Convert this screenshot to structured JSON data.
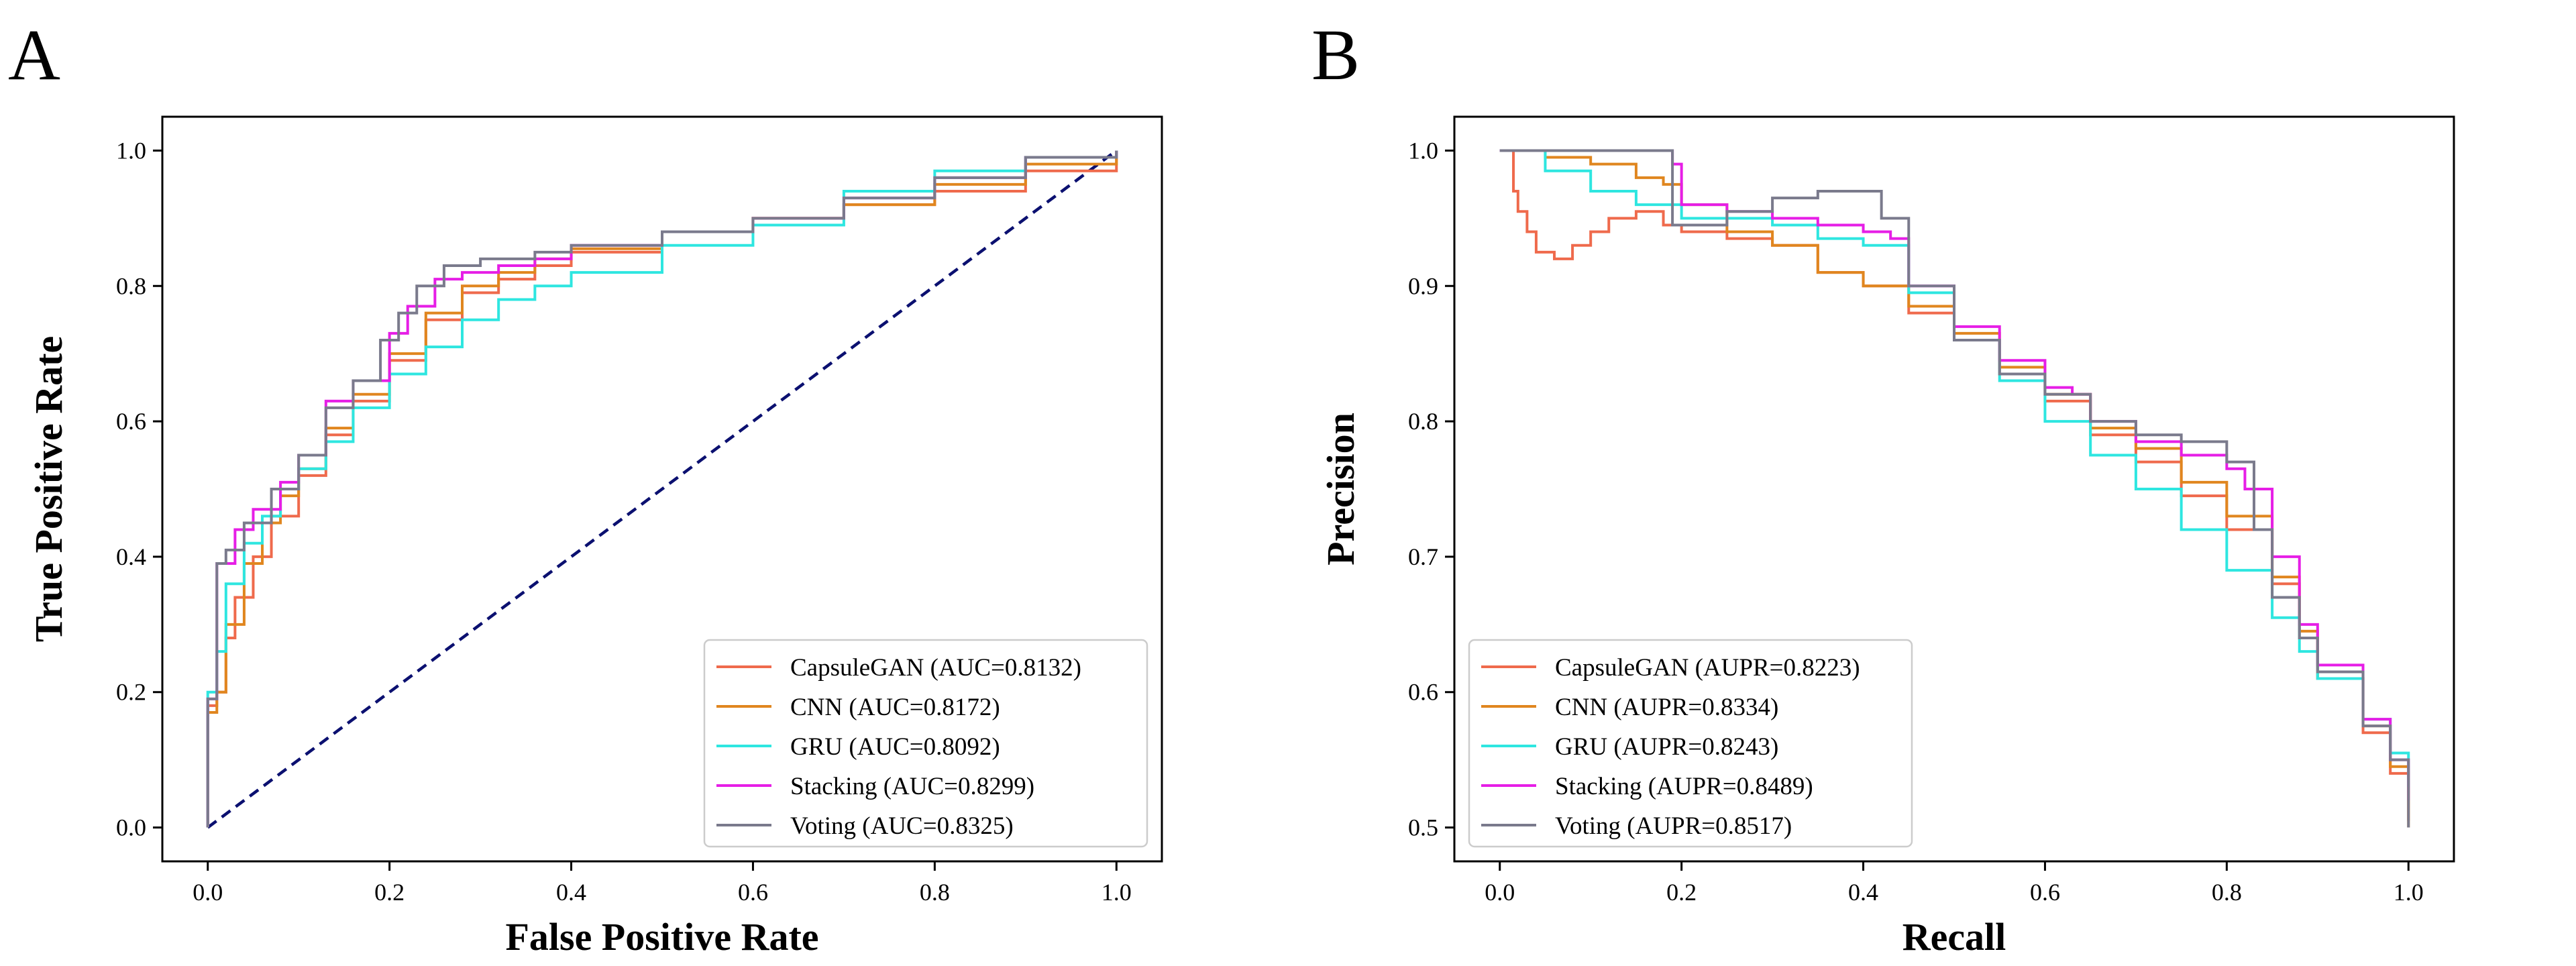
{
  "colors": {
    "CapsuleGAN": "#ef6a4c",
    "CNN": "#e0861f",
    "GRU": "#2ee6e0",
    "Stacking": "#e61ee6",
    "Voting": "#7a7a8c",
    "diagonal": "#0b1070"
  },
  "chart_data": [
    {
      "type": "line",
      "panel": "A",
      "xlabel": "False Positive Rate",
      "ylabel": "True Positive Rate",
      "xlim": [
        -0.05,
        1.05
      ],
      "ylim": [
        -0.05,
        1.05
      ],
      "xticks": [
        "0.0",
        "0.2",
        "0.4",
        "0.6",
        "0.8",
        "1.0"
      ],
      "yticks": [
        "0.0",
        "0.2",
        "0.4",
        "0.6",
        "0.8",
        "1.0"
      ],
      "grid": false,
      "legend_position": "bottom-right",
      "reference_line": {
        "x": [
          0,
          1
        ],
        "y": [
          0,
          1
        ],
        "style": "dashed"
      },
      "series": [
        {
          "name": "CapsuleGAN (AUC=0.8132)",
          "key": "CapsuleGAN",
          "x": [
            0,
            0,
            0.01,
            0.02,
            0.03,
            0.05,
            0.07,
            0.1,
            0.13,
            0.16,
            0.2,
            0.24,
            0.28,
            0.32,
            0.36,
            0.4,
            0.5,
            0.6,
            0.7,
            0.8,
            0.9,
            1.0
          ],
          "y": [
            0,
            0.18,
            0.2,
            0.28,
            0.34,
            0.4,
            0.46,
            0.52,
            0.58,
            0.63,
            0.69,
            0.75,
            0.79,
            0.81,
            0.83,
            0.85,
            0.88,
            0.9,
            0.92,
            0.94,
            0.97,
            1.0
          ]
        },
        {
          "name": "CNN (AUC=0.8172)",
          "key": "CNN",
          "x": [
            0,
            0,
            0.01,
            0.02,
            0.04,
            0.06,
            0.08,
            0.1,
            0.13,
            0.16,
            0.2,
            0.24,
            0.28,
            0.32,
            0.36,
            0.4,
            0.5,
            0.6,
            0.7,
            0.8,
            0.9,
            1.0
          ],
          "y": [
            0,
            0.17,
            0.2,
            0.3,
            0.39,
            0.45,
            0.49,
            0.53,
            0.59,
            0.64,
            0.7,
            0.76,
            0.8,
            0.82,
            0.84,
            0.855,
            0.88,
            0.9,
            0.92,
            0.95,
            0.98,
            1.0
          ]
        },
        {
          "name": "GRU (AUC=0.8092)",
          "key": "GRU",
          "x": [
            0,
            0,
            0.01,
            0.02,
            0.04,
            0.06,
            0.08,
            0.1,
            0.13,
            0.16,
            0.2,
            0.24,
            0.28,
            0.32,
            0.36,
            0.4,
            0.5,
            0.6,
            0.7,
            0.8,
            0.9,
            1.0
          ],
          "y": [
            0,
            0.2,
            0.26,
            0.36,
            0.42,
            0.46,
            0.5,
            0.53,
            0.57,
            0.62,
            0.67,
            0.71,
            0.75,
            0.78,
            0.8,
            0.82,
            0.86,
            0.89,
            0.94,
            0.97,
            0.99,
            1.0
          ]
        },
        {
          "name": "Stacking (AUC=0.8299)",
          "key": "Stacking",
          "x": [
            0,
            0,
            0.01,
            0.01,
            0.03,
            0.05,
            0.08,
            0.1,
            0.13,
            0.16,
            0.2,
            0.22,
            0.25,
            0.28,
            0.32,
            0.36,
            0.4,
            0.5,
            0.6,
            0.7,
            0.8,
            0.9,
            1.0
          ],
          "y": [
            0,
            0.19,
            0.2,
            0.39,
            0.44,
            0.47,
            0.51,
            0.55,
            0.63,
            0.66,
            0.73,
            0.77,
            0.81,
            0.82,
            0.83,
            0.84,
            0.86,
            0.88,
            0.9,
            0.93,
            0.96,
            0.99,
            1.0
          ]
        },
        {
          "name": "Voting (AUC=0.8325)",
          "key": "Voting",
          "x": [
            0,
            0,
            0.01,
            0.01,
            0.02,
            0.04,
            0.07,
            0.1,
            0.13,
            0.16,
            0.19,
            0.21,
            0.23,
            0.26,
            0.3,
            0.36,
            0.4,
            0.5,
            0.6,
            0.7,
            0.8,
            0.9,
            1.0
          ],
          "y": [
            0,
            0.19,
            0.2,
            0.39,
            0.41,
            0.45,
            0.5,
            0.55,
            0.62,
            0.66,
            0.72,
            0.76,
            0.8,
            0.83,
            0.84,
            0.85,
            0.86,
            0.88,
            0.9,
            0.93,
            0.96,
            0.99,
            1.0
          ]
        }
      ]
    },
    {
      "type": "line",
      "panel": "B",
      "xlabel": "Recall",
      "ylabel": "Precision",
      "xlim": [
        -0.05,
        1.05
      ],
      "ylim": [
        0.475,
        1.025
      ],
      "xticks": [
        "0.0",
        "0.2",
        "0.4",
        "0.6",
        "0.8",
        "1.0"
      ],
      "yticks": [
        "0.5",
        "0.6",
        "0.7",
        "0.8",
        "0.9",
        "1.0"
      ],
      "grid": false,
      "legend_position": "bottom-left",
      "series": [
        {
          "name": "CapsuleGAN (AUPR=0.8223)",
          "key": "CapsuleGAN",
          "x": [
            0,
            0.015,
            0.02,
            0.03,
            0.04,
            0.06,
            0.08,
            0.1,
            0.12,
            0.15,
            0.18,
            0.2,
            0.25,
            0.3,
            0.35,
            0.4,
            0.45,
            0.5,
            0.55,
            0.6,
            0.65,
            0.7,
            0.75,
            0.8,
            0.85,
            0.88,
            0.9,
            0.95,
            0.98,
            1.0,
            1.0
          ],
          "y": [
            1.0,
            0.97,
            0.955,
            0.94,
            0.925,
            0.92,
            0.93,
            0.94,
            0.95,
            0.955,
            0.945,
            0.94,
            0.935,
            0.93,
            0.91,
            0.9,
            0.88,
            0.86,
            0.835,
            0.815,
            0.79,
            0.77,
            0.745,
            0.72,
            0.68,
            0.64,
            0.61,
            0.57,
            0.54,
            0.52,
            0.505
          ]
        },
        {
          "name": "CNN (AUPR=0.8334)",
          "key": "CNN",
          "x": [
            0,
            0.05,
            0.1,
            0.15,
            0.18,
            0.2,
            0.25,
            0.3,
            0.35,
            0.4,
            0.45,
            0.5,
            0.55,
            0.6,
            0.65,
            0.7,
            0.75,
            0.8,
            0.85,
            0.88,
            0.9,
            0.95,
            0.98,
            1.0,
            1.0
          ],
          "y": [
            1.0,
            0.995,
            0.99,
            0.98,
            0.975,
            0.96,
            0.94,
            0.93,
            0.91,
            0.9,
            0.885,
            0.865,
            0.84,
            0.82,
            0.795,
            0.78,
            0.755,
            0.73,
            0.685,
            0.645,
            0.61,
            0.575,
            0.545,
            0.53,
            0.5
          ]
        },
        {
          "name": "GRU (AUPR=0.8243)",
          "key": "GRU",
          "x": [
            0,
            0.05,
            0.1,
            0.15,
            0.2,
            0.25,
            0.3,
            0.35,
            0.4,
            0.45,
            0.5,
            0.55,
            0.6,
            0.65,
            0.7,
            0.75,
            0.8,
            0.85,
            0.88,
            0.9,
            0.95,
            0.98,
            1.0
          ],
          "y": [
            1.0,
            0.985,
            0.97,
            0.96,
            0.95,
            0.95,
            0.945,
            0.935,
            0.93,
            0.895,
            0.86,
            0.83,
            0.8,
            0.775,
            0.75,
            0.72,
            0.69,
            0.655,
            0.63,
            0.61,
            0.58,
            0.555,
            0.53
          ]
        },
        {
          "name": "Stacking (AUPR=0.8489)",
          "key": "Stacking",
          "x": [
            0,
            0.05,
            0.1,
            0.15,
            0.19,
            0.2,
            0.25,
            0.3,
            0.35,
            0.4,
            0.43,
            0.45,
            0.5,
            0.55,
            0.6,
            0.63,
            0.65,
            0.7,
            0.75,
            0.8,
            0.82,
            0.85,
            0.88,
            0.9,
            0.95,
            0.98,
            1.0
          ],
          "y": [
            1.0,
            1.0,
            1.0,
            1.0,
            0.99,
            0.96,
            0.955,
            0.95,
            0.945,
            0.94,
            0.935,
            0.9,
            0.87,
            0.845,
            0.825,
            0.82,
            0.8,
            0.785,
            0.775,
            0.765,
            0.75,
            0.7,
            0.65,
            0.62,
            0.58,
            0.55,
            0.52
          ]
        },
        {
          "name": "Voting (AUPR=0.8517)",
          "key": "Voting",
          "x": [
            0,
            0.05,
            0.1,
            0.15,
            0.19,
            0.19,
            0.25,
            0.3,
            0.35,
            0.39,
            0.42,
            0.45,
            0.5,
            0.55,
            0.6,
            0.65,
            0.7,
            0.75,
            0.8,
            0.83,
            0.85,
            0.88,
            0.9,
            0.95,
            0.98,
            1.0,
            1.0
          ],
          "y": [
            1.0,
            1.0,
            1.0,
            1.0,
            1.0,
            0.945,
            0.955,
            0.965,
            0.97,
            0.97,
            0.95,
            0.9,
            0.86,
            0.835,
            0.82,
            0.8,
            0.79,
            0.785,
            0.77,
            0.72,
            0.67,
            0.64,
            0.615,
            0.575,
            0.55,
            0.53,
            0.5
          ]
        }
      ]
    }
  ],
  "panels": {
    "A": {
      "letter": "A"
    },
    "B": {
      "letter": "B"
    }
  }
}
